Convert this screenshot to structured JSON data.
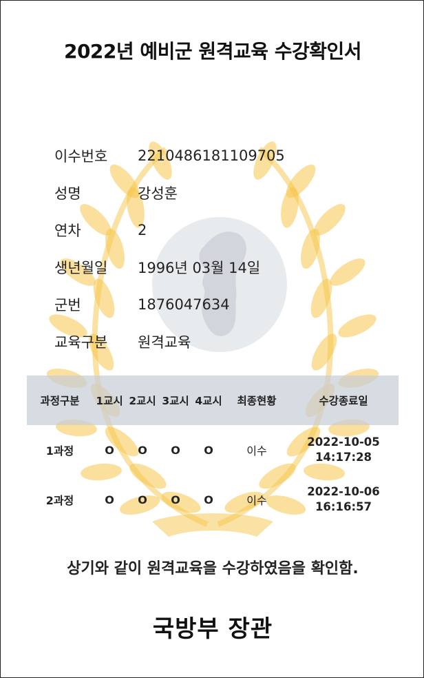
{
  "document": {
    "title": "2022년 예비군 원격교육 수강확인서",
    "info": [
      {
        "label": "이수번호",
        "value": "2210486181109705"
      },
      {
        "label": "성명",
        "value": "강성훈"
      },
      {
        "label": "연차",
        "value": "2"
      },
      {
        "label": "생년월일",
        "value": "1996년 03월 14일"
      },
      {
        "label": "군번",
        "value": "1876047634"
      },
      {
        "label": "교육구분",
        "value": "원격교육"
      }
    ],
    "table": {
      "headers": [
        "과정구분",
        "1교시",
        "2교시",
        "3교시",
        "4교시",
        "최종현황",
        "수강종료일"
      ],
      "rows": [
        {
          "course": "1과정",
          "p1": "O",
          "p2": "O",
          "p3": "O",
          "p4": "O",
          "status": "이수",
          "end_date": "2022-10-05",
          "end_time": "14:17:28"
        },
        {
          "course": "2과정",
          "p1": "O",
          "p2": "O",
          "p3": "O",
          "p4": "O",
          "status": "이수",
          "end_date": "2022-10-06",
          "end_time": "16:16:57"
        }
      ]
    },
    "confirmation": "상기와 같이 원격교육을 수강하였음을 확인함.",
    "issuer": "국방부 장관"
  },
  "colors": {
    "emblem_gold": "#f6c64a",
    "emblem_circle": "#e4e7ea",
    "emblem_map": "#cfd3d8",
    "header_bg": "#c8cdd7"
  }
}
